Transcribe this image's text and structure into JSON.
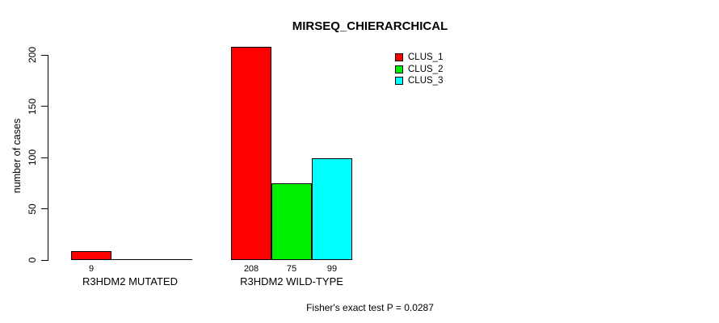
{
  "chart_data": {
    "type": "bar",
    "title": "MIRSEQ_CHIERARCHICAL",
    "ylabel": "number of cases",
    "xlabel": "",
    "annotation": "Fisher's exact test P = 0.0287",
    "categories": [
      "R3HDM2 MUTATED",
      "R3HDM2 WILD-TYPE"
    ],
    "series": [
      {
        "name": "CLUS_1",
        "color": "#ff0000",
        "values": [
          9,
          208
        ]
      },
      {
        "name": "CLUS_2",
        "color": "#00ee00",
        "values": [
          0,
          75
        ]
      },
      {
        "name": "CLUS_3",
        "color": "#00ffff",
        "values": [
          0,
          99
        ]
      }
    ],
    "yticks": [
      0,
      50,
      100,
      150,
      200
    ],
    "ylim": [
      0,
      208
    ],
    "grid": false,
    "legend_position": "top-right",
    "bar_value_labels": [
      [
        "9",
        "",
        ""
      ],
      [
        "208",
        "75",
        "99"
      ]
    ]
  }
}
